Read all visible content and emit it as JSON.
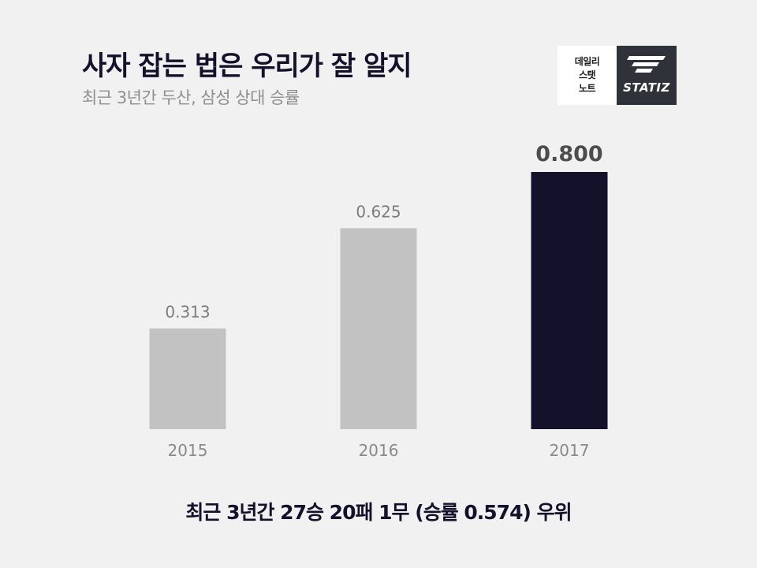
{
  "header": {
    "title": "사자 잡는 법은 우리가 잘 알지",
    "subtitle": "최근 3년간 두산, 삼성 상대 승률"
  },
  "logo": {
    "lines": [
      "데일리",
      "스탯",
      "노트"
    ],
    "wordmark": "STATIZ",
    "colors": {
      "left_bg": "#ffffff",
      "right_bg": "#2f3238"
    }
  },
  "chart_data": {
    "type": "bar",
    "categories": [
      "2015",
      "2016",
      "2017"
    ],
    "values": [
      0.313,
      0.625,
      0.8
    ],
    "labels": [
      "0.313",
      "0.625",
      "0.800"
    ],
    "ylim": [
      0,
      0.8
    ],
    "grid": false,
    "highlight_index": 2,
    "colors": {
      "default": "#c2c2c2",
      "highlight": "#14112a"
    }
  },
  "footer": {
    "text": "최근 3년간 27승 20패 1무 (승률 0.574) 우위"
  }
}
